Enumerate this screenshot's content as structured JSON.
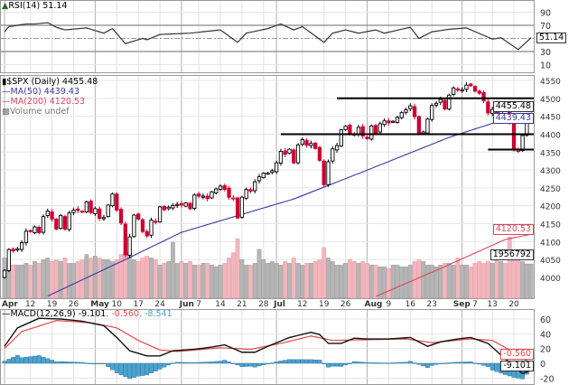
{
  "chart_data": [
    {
      "type": "line",
      "panel": "RSI",
      "title": "RSI(14) 51.14",
      "current_label": "51.14",
      "ylim": [
        0,
        100
      ],
      "yticks": [
        "90",
        "70",
        "30",
        "10"
      ],
      "reference_lines": [
        70,
        50,
        30
      ],
      "grid": true,
      "series": [
        {
          "name": "RSI(14)",
          "color": "#333333",
          "points": [
            [
              "Apr 1",
              60
            ],
            [
              "Apr 5",
              68
            ],
            [
              "Apr 9",
              72
            ],
            [
              "Apr 13",
              72
            ],
            [
              "Apr 16",
              74
            ],
            [
              "Apr 20",
              67
            ],
            [
              "Apr 22",
              63
            ],
            [
              "Apr 29",
              66
            ],
            [
              "May 5",
              58
            ],
            [
              "May 7",
              65
            ],
            [
              "May 12",
              42
            ],
            [
              "May 18",
              50
            ],
            [
              "May 19",
              48
            ],
            [
              "May 24",
              56
            ],
            [
              "Jun 3",
              58
            ],
            [
              "Jun 14",
              63
            ],
            [
              "Jun 18",
              44
            ],
            [
              "Jun 22",
              58
            ],
            [
              "Jun 29",
              65
            ],
            [
              "Jul 2",
              72
            ],
            [
              "Jul 8",
              63
            ],
            [
              "Jul 12",
              68
            ],
            [
              "Jul 19",
              44
            ],
            [
              "Jul 21",
              58
            ],
            [
              "Jul 26",
              63
            ],
            [
              "Jul 29",
              58
            ],
            [
              "Aug 4",
              63
            ],
            [
              "Aug 6",
              58
            ],
            [
              "Aug 16",
              67
            ],
            [
              "Aug 18",
              50
            ],
            [
              "Aug 23",
              60
            ],
            [
              "Aug 27",
              64
            ],
            [
              "Sep 2",
              66
            ],
            [
              "Sep 13",
              49
            ],
            [
              "Sep 15",
              51
            ],
            [
              "Sep 21",
              33
            ],
            [
              "Sep 24",
              51.14
            ]
          ]
        }
      ]
    },
    {
      "type": "candlestick",
      "panel": "price",
      "title": "$SPX (Daily) 4455.48",
      "legend": [
        {
          "label": "MA(50) 4439.43",
          "color": "#3b3ba0"
        },
        {
          "label": "MA(200) 4120.53",
          "color": "#d9465e"
        },
        {
          "label": "Volume undef",
          "color": "#777777"
        }
      ],
      "ylim": [
        3975,
        4570
      ],
      "yticks": [
        "4550",
        "4500",
        "4450",
        "4400",
        "4350",
        "4300",
        "4250",
        "4200",
        "4150",
        "4100",
        "4050",
        "4000"
      ],
      "grid": true,
      "value_labels": {
        "close": "4455.48",
        "ma50": "4439.43",
        "ma200": "4120.53",
        "volume": "1956792"
      },
      "colors": {
        "up": "#000000",
        "down": "#cc0033",
        "volume_up": "#b5b5b5",
        "volume_down": "#f2b6bd"
      },
      "dates": [
        "Apr 1",
        "Apr 5",
        "Apr 6",
        "Apr 7",
        "Apr 8",
        "Apr 9",
        "Apr 12",
        "Apr 13",
        "Apr 14",
        "Apr 15",
        "Apr 16",
        "Apr 19",
        "Apr 20",
        "Apr 21",
        "Apr 22",
        "Apr 23",
        "Apr 26",
        "Apr 27",
        "Apr 28",
        "Apr 29",
        "Apr 30",
        "May 3",
        "May 4",
        "May 5",
        "May 6",
        "May 7",
        "May 10",
        "May 11",
        "May 12",
        "May 13",
        "May 14",
        "May 17",
        "May 18",
        "May 19",
        "May 20",
        "May 21",
        "May 24",
        "May 25",
        "May 26",
        "May 27",
        "May 28",
        "Jun 1",
        "Jun 2",
        "Jun 3",
        "Jun 4",
        "Jun 7",
        "Jun 8",
        "Jun 9",
        "Jun 10",
        "Jun 11",
        "Jun 14",
        "Jun 15",
        "Jun 16",
        "Jun 17",
        "Jun 18",
        "Jun 21",
        "Jun 22",
        "Jun 23",
        "Jun 24",
        "Jun 25",
        "Jun 28",
        "Jun 29",
        "Jun 30",
        "Jul 1",
        "Jul 2",
        "Jul 6",
        "Jul 7",
        "Jul 8",
        "Jul 9",
        "Jul 12",
        "Jul 13",
        "Jul 14",
        "Jul 15",
        "Jul 16",
        "Jul 19",
        "Jul 20",
        "Jul 21",
        "Jul 22",
        "Jul 23",
        "Jul 26",
        "Jul 27",
        "Jul 28",
        "Jul 29",
        "Jul 30",
        "Aug 2",
        "Aug 3",
        "Aug 4",
        "Aug 5",
        "Aug 6",
        "Aug 9",
        "Aug 10",
        "Aug 11",
        "Aug 12",
        "Aug 13",
        "Aug 16",
        "Aug 17",
        "Aug 18",
        "Aug 19",
        "Aug 20",
        "Aug 23",
        "Aug 24",
        "Aug 25",
        "Aug 26",
        "Aug 27",
        "Aug 30",
        "Aug 31",
        "Sep 1",
        "Sep 2",
        "Sep 3",
        "Sep 7",
        "Sep 8",
        "Sep 9",
        "Sep 10",
        "Sep 13",
        "Sep 14",
        "Sep 15",
        "Sep 16",
        "Sep 17",
        "Sep 20",
        "Sep 21",
        "Sep 22",
        "Sep 23",
        "Sep 24"
      ],
      "close": [
        4020,
        4078,
        4074,
        4080,
        4097,
        4129,
        4128,
        4141,
        4125,
        4170,
        4185,
        4163,
        4135,
        4173,
        4135,
        4180,
        4188,
        4187,
        4183,
        4211,
        4181,
        4192,
        4165,
        4167,
        4202,
        4233,
        4188,
        4152,
        4063,
        4113,
        4174,
        4163,
        4128,
        4116,
        4160,
        4156,
        4197,
        4189,
        4196,
        4201,
        4204,
        4202,
        4208,
        4192,
        4230,
        4227,
        4227,
        4220,
        4239,
        4247,
        4255,
        4246,
        4224,
        4222,
        4166,
        4224,
        4246,
        4241,
        4267,
        4281,
        4291,
        4291,
        4298,
        4320,
        4352,
        4344,
        4358,
        4320,
        4370,
        4385,
        4369,
        4374,
        4360,
        4327,
        4259,
        4323,
        4359,
        4368,
        4412,
        4422,
        4401,
        4400,
        4419,
        4395,
        4387,
        4423,
        4403,
        4429,
        4437,
        4432,
        4436,
        4447,
        4460,
        4468,
        4479,
        4449,
        4400,
        4406,
        4442,
        4480,
        4486,
        4497,
        4470,
        4509,
        4529,
        4523,
        4524,
        4537,
        4535,
        4520,
        4514,
        4493,
        4459,
        4469,
        4443,
        4481,
        4474,
        4433,
        4358,
        4355,
        4396,
        4449,
        4455.48
      ],
      "volume_millions": [
        2.3,
        2.0,
        1.9,
        1.9,
        1.9,
        2.0,
        1.9,
        2.1,
        2.0,
        2.2,
        2.3,
        2.1,
        2.2,
        2.1,
        2.3,
        2.0,
        2.0,
        2.1,
        2.2,
        2.5,
        2.3,
        2.4,
        2.3,
        2.2,
        2.2,
        2.1,
        2.2,
        2.5,
        2.7,
        2.6,
        2.2,
        2.1,
        2.3,
        2.4,
        2.3,
        2.2,
        1.9,
        2.0,
        2.1,
        3.2,
        2.0,
        2.1,
        2.0,
        2.1,
        1.9,
        1.9,
        2.0,
        2.0,
        1.9,
        1.8,
        1.9,
        2.0,
        2.3,
        2.6,
        3.4,
        2.2,
        1.9,
        1.9,
        2.0,
        2.8,
        2.2,
        2.0,
        2.1,
        2.0,
        1.9,
        2.1,
        2.0,
        2.3,
        2.0,
        1.9,
        2.0,
        2.0,
        2.1,
        2.2,
        2.9,
        2.3,
        2.1,
        1.9,
        1.9,
        2.0,
        2.2,
        2.1,
        2.0,
        2.1,
        2.0,
        1.9,
        1.9,
        1.8,
        1.8,
        1.7,
        1.9,
        1.9,
        1.8,
        1.8,
        1.9,
        2.1,
        2.2,
        2.1,
        1.9,
        1.9,
        1.8,
        1.9,
        2.0,
        2.0,
        1.9,
        2.3,
        1.9,
        1.9,
        1.8,
        2.0,
        2.1,
        2.0,
        2.1,
        2.0,
        2.2,
        2.1,
        2.0,
        3.5,
        2.7,
        2.2,
        2.1,
        1.96,
        1.956792
      ],
      "ma50": [
        [
          "Apr 16",
          3948
        ],
        [
          "May 12",
          4050
        ],
        [
          "Jun 1",
          4126
        ],
        [
          "Jul 8",
          4219
        ],
        [
          "Jul 29",
          4290
        ],
        [
          "Aug 27",
          4391
        ],
        [
          "Sep 14",
          4434
        ],
        [
          "Sep 24",
          4439.43
        ]
      ],
      "ma200": [
        [
          "Aug 4",
          3947
        ],
        [
          "Aug 25",
          4025
        ],
        [
          "Sep 16",
          4106
        ],
        [
          "Sep 24",
          4120.53
        ]
      ],
      "annotations": [
        {
          "type": "horizontal_line",
          "level": 4500,
          "from": "Jul 22"
        },
        {
          "type": "horizontal_line",
          "level": 4400,
          "from": "Jul 2"
        },
        {
          "type": "horizontal_line",
          "level": 4357,
          "from": "Sep 10"
        }
      ]
    },
    {
      "type": "line",
      "panel": "MACD",
      "title": "MACD(12,26,9)",
      "values_label": {
        "macd": "-9.101",
        "signal": "-0.560",
        "histogram": "-8.541"
      },
      "ylim": [
        -25,
        70
      ],
      "yticks": [
        "60",
        "40",
        "20",
        "0",
        "-20"
      ],
      "grid": true,
      "series": [
        {
          "name": "MACD",
          "color": "#111111",
          "points": [
            [
              "Apr 1",
              23
            ],
            [
              "Apr 7",
              48
            ],
            [
              "Apr 14",
              61
            ],
            [
              "Apr 21",
              60
            ],
            [
              "Apr 28",
              57
            ],
            [
              "May 5",
              51
            ],
            [
              "May 10",
              35
            ],
            [
              "May 13",
              17
            ],
            [
              "May 19",
              10
            ],
            [
              "May 24",
              10
            ],
            [
              "May 27",
              17
            ],
            [
              "Jun 4",
              19
            ],
            [
              "Jun 10",
              22
            ],
            [
              "Jun 15",
              25
            ],
            [
              "Jun 21",
              15
            ],
            [
              "Jun 24",
              15
            ],
            [
              "Jun 29",
              23
            ],
            [
              "Jul 7",
              35
            ],
            [
              "Jul 14",
              42
            ],
            [
              "Jul 16",
              39
            ],
            [
              "Jul 20",
              27
            ],
            [
              "Jul 23",
              27
            ],
            [
              "Jul 28",
              34
            ],
            [
              "Aug 2",
              33
            ],
            [
              "Aug 9",
              33
            ],
            [
              "Aug 16",
              35
            ],
            [
              "Aug 20",
              23
            ],
            [
              "Aug 25",
              29
            ],
            [
              "Aug 31",
              33
            ],
            [
              "Sep 3",
              35
            ],
            [
              "Sep 10",
              27
            ],
            [
              "Sep 16",
              6
            ],
            [
              "Sep 22",
              -14
            ],
            [
              "Sep 24",
              -9.101
            ]
          ]
        },
        {
          "name": "Signal",
          "color": "#e84848",
          "points": [
            [
              "Apr 1",
              20
            ],
            [
              "Apr 8",
              43
            ],
            [
              "Apr 20",
              58
            ],
            [
              "Apr 30",
              55
            ],
            [
              "May 10",
              48
            ],
            [
              "May 17",
              31
            ],
            [
              "May 24",
              18
            ],
            [
              "May 28",
              16
            ],
            [
              "Jun 14",
              21
            ],
            [
              "Jun 23",
              19
            ],
            [
              "Jul 2",
              27
            ],
            [
              "Jul 14",
              37
            ],
            [
              "Jul 21",
              31
            ],
            [
              "Aug 2",
              32
            ],
            [
              "Aug 13",
              33
            ],
            [
              "Aug 23",
              28
            ],
            [
              "Sep 3",
              33
            ],
            [
              "Sep 13",
              31
            ],
            [
              "Sep 20",
              15
            ],
            [
              "Sep 24",
              -0.56
            ]
          ]
        },
        {
          "name": "Histogram",
          "color": "#4aa3d1",
          "derived": "MACD - Signal"
        }
      ]
    }
  ],
  "x_axis": {
    "ticks": [
      {
        "label": "Apr",
        "date": "Apr 1",
        "month": true
      },
      {
        "label": "12",
        "date": "Apr 12"
      },
      {
        "label": "19",
        "date": "Apr 19"
      },
      {
        "label": "26",
        "date": "Apr 26"
      },
      {
        "label": "May",
        "date": "May 3",
        "month": true
      },
      {
        "label": "10",
        "date": "May 10"
      },
      {
        "label": "17",
        "date": "May 17"
      },
      {
        "label": "24",
        "date": "May 24"
      },
      {
        "label": "Jun",
        "date": "Jun 1",
        "month": true
      },
      {
        "label": "7",
        "date": "Jun 7"
      },
      {
        "label": "14",
        "date": "Jun 14"
      },
      {
        "label": "21",
        "date": "Jun 21"
      },
      {
        "label": "28",
        "date": "Jun 28"
      },
      {
        "label": "Jul",
        "date": "Jul 1",
        "month": true
      },
      {
        "label": "12",
        "date": "Jul 12"
      },
      {
        "label": "19",
        "date": "Jul 19"
      },
      {
        "label": "26",
        "date": "Jul 26"
      },
      {
        "label": "Aug",
        "date": "Aug 2",
        "month": true
      },
      {
        "label": "9",
        "date": "Aug 9"
      },
      {
        "label": "16",
        "date": "Aug 16"
      },
      {
        "label": "23",
        "date": "Aug 23"
      },
      {
        "label": "Sep",
        "date": "Sep 1",
        "month": true
      },
      {
        "label": "7",
        "date": "Sep 7"
      },
      {
        "label": "13",
        "date": "Sep 13"
      },
      {
        "label": "20",
        "date": "Sep 20"
      }
    ]
  }
}
